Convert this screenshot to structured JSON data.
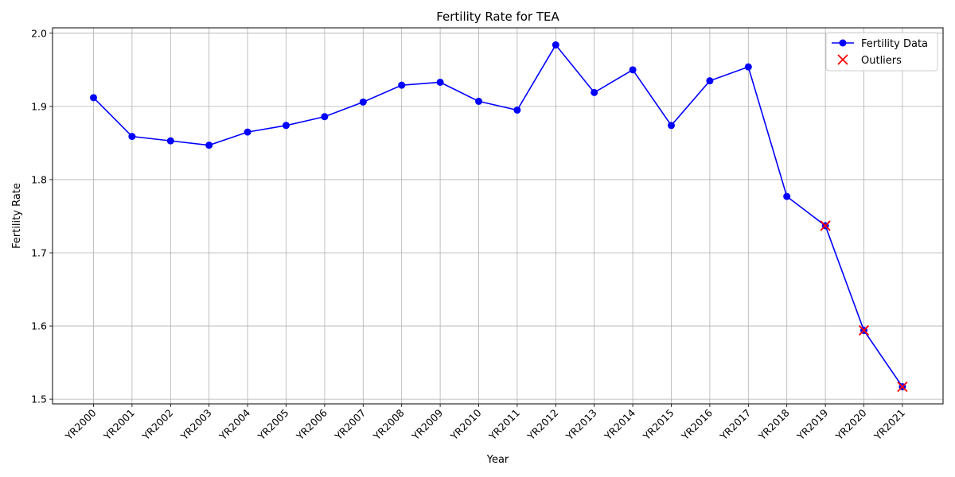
{
  "chart_data": {
    "type": "line",
    "title": "Fertility Rate for TEA",
    "xlabel": "Year",
    "ylabel": "Fertility Rate",
    "categories": [
      "YR2000",
      "YR2001",
      "YR2002",
      "YR2003",
      "YR2004",
      "YR2005",
      "YR2006",
      "YR2007",
      "YR2008",
      "YR2009",
      "YR2010",
      "YR2011",
      "YR2012",
      "YR2013",
      "YR2014",
      "YR2015",
      "YR2016",
      "YR2017",
      "YR2018",
      "YR2019",
      "YR2020",
      "YR2021"
    ],
    "series": [
      {
        "name": "Fertility Data",
        "color": "#0000ff",
        "values": [
          1.912,
          1.859,
          1.853,
          1.847,
          1.865,
          1.874,
          1.886,
          1.906,
          1.929,
          1.933,
          1.907,
          1.895,
          1.984,
          1.919,
          1.95,
          1.874,
          1.935,
          1.954,
          1.777,
          1.737,
          1.594,
          1.517
        ]
      }
    ],
    "outliers": {
      "name": "Outliers",
      "color": "#ff0000",
      "categories": [
        "YR2019",
        "YR2020",
        "YR2021"
      ],
      "values": [
        1.737,
        1.594,
        1.517
      ]
    },
    "yticks": [
      "1.5",
      "1.6",
      "1.7",
      "1.8",
      "1.9",
      "2.0"
    ],
    "ylim": [
      1.4936,
      2.0074
    ],
    "grid": true,
    "legend_position": "top-right"
  }
}
